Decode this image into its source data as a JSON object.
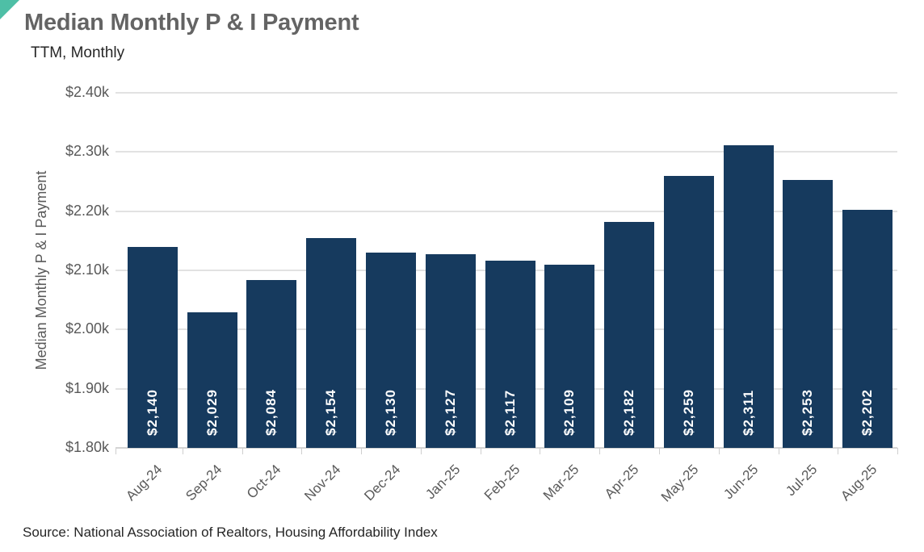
{
  "brand": {
    "corner_accent_color": "#4EBFA6"
  },
  "header": {
    "title": "Median Monthly P & I Payment",
    "subtitle": "TTM, Monthly"
  },
  "chart_data": {
    "type": "bar",
    "title": "Median Monthly P & I Payment",
    "subtitle": "TTM, Monthly",
    "categories": [
      "Aug-24",
      "Sep-24",
      "Oct-24",
      "Nov-24",
      "Dec-24",
      "Jan-25",
      "Feb-25",
      "Mar-25",
      "Apr-25",
      "May-25",
      "Jun-25",
      "Jul-25",
      "Aug-25"
    ],
    "values": [
      2140,
      2029,
      2084,
      2154,
      2130,
      2127,
      2117,
      2109,
      2182,
      2259,
      2311,
      2253,
      2202
    ],
    "value_labels": [
      "$2,140",
      "$2,029",
      "$2,084",
      "$2,154",
      "$2,130",
      "$2,127",
      "$2,117",
      "$2,109",
      "$2,182",
      "$2,259",
      "$2,311",
      "$2,253",
      "$2,202"
    ],
    "xlabel": "",
    "ylabel": "Median Monthly P & I Payment",
    "ylim": [
      1800,
      2400
    ],
    "y_ticks": [
      {
        "value": 2400,
        "label": "$2.40k"
      },
      {
        "value": 2300,
        "label": "$2.30k"
      },
      {
        "value": 2200,
        "label": "$2.20k"
      },
      {
        "value": 2100,
        "label": "$2.10k"
      },
      {
        "value": 2000,
        "label": "$2.00k"
      },
      {
        "value": 1900,
        "label": "$1.90k"
      },
      {
        "value": 1800,
        "label": "$1.80k"
      }
    ],
    "grid": "horizontal",
    "legend": "none",
    "bar_color": "#163A5E",
    "bar_label_color": "#FFFFFF",
    "gridline_color": "#E2E2E2",
    "axis_color": "#D4D4D4"
  },
  "footer": {
    "source": "Source: National Association of Realtors, Housing Affordability Index"
  }
}
